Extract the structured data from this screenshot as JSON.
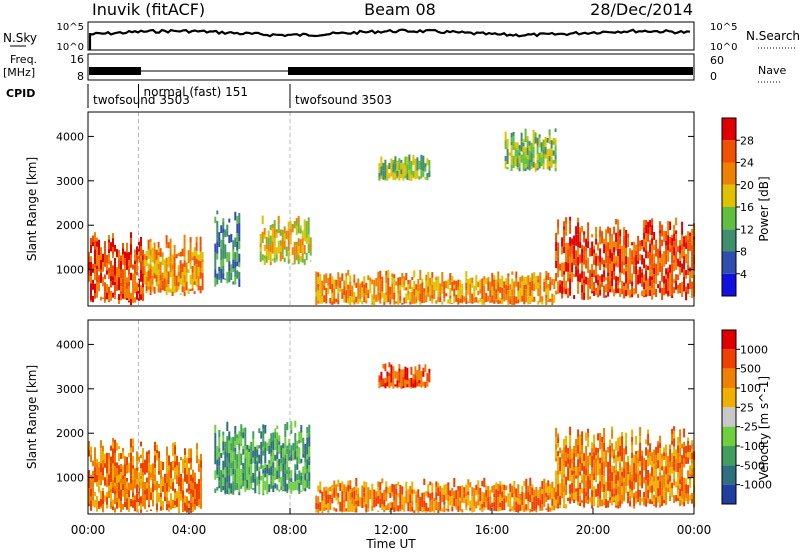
{
  "header": {
    "station": "Inuvik (fitACF)",
    "beam": "Beam 08",
    "date": "28/Dec/2014"
  },
  "summary": {
    "nsky_label": "N.Sky",
    "nsky_ticks": [
      "10^5",
      "10^0"
    ],
    "nsearch_label": "N.Search",
    "nsearch_ticks": [
      "10^5",
      "10^0"
    ],
    "freq_label": "Freq.",
    "freq_unit": "[MHz]",
    "freq_ticks": [
      "16",
      "8"
    ],
    "nave_label": "Nave",
    "nave_ticks": [
      "60",
      "0"
    ],
    "cpid_label": "CPID",
    "cpid_segments": [
      {
        "label": "twofsound 3503",
        "start_hour": 0.0
      },
      {
        "label": "normal (fast) 151",
        "start_hour": 2.0
      },
      {
        "label": "twofsound 3503",
        "start_hour": 8.0
      }
    ]
  },
  "chart_data": [
    {
      "type": "heatmap",
      "name": "power",
      "ylabel": "Slant Range [km]",
      "y_ticks": [
        "1000",
        "2000",
        "3000",
        "4000"
      ],
      "ylim": [
        180,
        4550
      ],
      "xlim": [
        0,
        24
      ],
      "colorbar_label": "Power [dB]",
      "colorbar_ticks": [
        "4",
        "8",
        "12",
        "16",
        "20",
        "24",
        "28"
      ],
      "colorbar_range": [
        0,
        32
      ],
      "colors": [
        "#1010e0",
        "#2f4fb0",
        "#3f8f6f",
        "#5fbf3f",
        "#e0c000",
        "#f08000",
        "#f05000",
        "#e00000"
      ],
      "echo_regions": [
        {
          "t0": 0.0,
          "t1": 2.2,
          "r0": 200,
          "r1": 1900,
          "level": 6
        },
        {
          "t0": 2.2,
          "t1": 4.5,
          "r0": 400,
          "r1": 1800,
          "level": 5
        },
        {
          "t0": 5.0,
          "t1": 6.0,
          "r0": 600,
          "r1": 2400,
          "level": 2
        },
        {
          "t0": 6.8,
          "t1": 8.8,
          "r0": 1100,
          "r1": 2300,
          "level": 4
        },
        {
          "t0": 9.0,
          "t1": 18.5,
          "r0": 200,
          "r1": 1000,
          "level": 5
        },
        {
          "t0": 11.5,
          "t1": 13.5,
          "r0": 3000,
          "r1": 3600,
          "level": 3
        },
        {
          "t0": 16.5,
          "t1": 18.5,
          "r0": 3200,
          "r1": 4200,
          "level": 3
        },
        {
          "t0": 18.5,
          "t1": 24.0,
          "r0": 300,
          "r1": 2200,
          "level": 6
        }
      ]
    },
    {
      "type": "heatmap",
      "name": "velocity",
      "ylabel": "Slant Range [km]",
      "y_ticks": [
        "1000",
        "2000",
        "3000",
        "4000"
      ],
      "ylim": [
        180,
        4550
      ],
      "xlim": [
        0,
        24
      ],
      "x_ticks": [
        "00:00",
        "04:00",
        "08:00",
        "12:00",
        "16:00",
        "20:00",
        "00:00"
      ],
      "xlabel": "Time UT",
      "colorbar_label": "Velocity [m s^-1]",
      "colorbar_ticks": [
        "1000",
        "500",
        "100",
        "25",
        "-25",
        "-100",
        "-500",
        "-1000"
      ],
      "colors": [
        "#1f3fa0",
        "#2f6f7f",
        "#3f9f5f",
        "#6fcf3f",
        "#c8c8c8",
        "#f0b000",
        "#f08000",
        "#f04000",
        "#e00000"
      ],
      "echo_regions": [
        {
          "t0": 0.0,
          "t1": 4.5,
          "r0": 200,
          "r1": 1900,
          "level": 6
        },
        {
          "t0": 5.0,
          "t1": 8.8,
          "r0": 600,
          "r1": 2300,
          "level": 2
        },
        {
          "t0": 9.0,
          "t1": 18.5,
          "r0": 200,
          "r1": 1000,
          "level": 6
        },
        {
          "t0": 11.5,
          "t1": 13.5,
          "r0": 3000,
          "r1": 3600,
          "level": 7
        },
        {
          "t0": 18.5,
          "t1": 24.0,
          "r0": 300,
          "r1": 2200,
          "level": 6
        }
      ]
    }
  ]
}
